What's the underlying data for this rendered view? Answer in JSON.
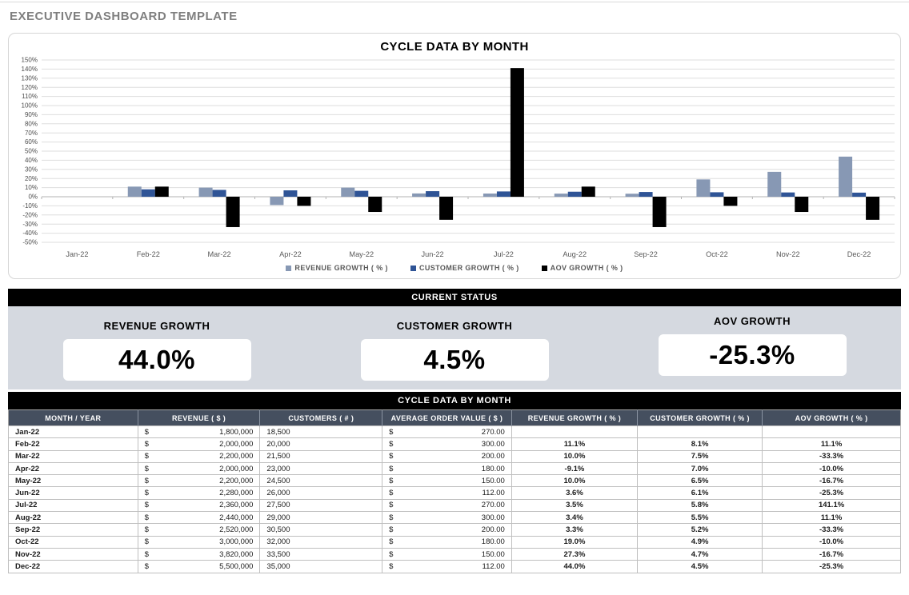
{
  "page": {
    "title": "EXECUTIVE DASHBOARD TEMPLATE"
  },
  "chart": {
    "title": "CYCLE DATA BY MONTH"
  },
  "chart_data": {
    "type": "bar",
    "title": "CYCLE DATA BY MONTH",
    "categories": [
      "Jan-22",
      "Feb-22",
      "Mar-22",
      "Apr-22",
      "May-22",
      "Jun-22",
      "Jul-22",
      "Aug-22",
      "Sep-22",
      "Oct-22",
      "Nov-22",
      "Dec-22"
    ],
    "series": [
      {
        "name": "REVENUE GROWTH ( % )",
        "color": "#8798B4",
        "values": [
          null,
          11.1,
          10.0,
          -9.1,
          10.0,
          3.6,
          3.5,
          3.4,
          3.3,
          19.0,
          27.3,
          44.0
        ]
      },
      {
        "name": "CUSTOMER GROWTH ( % )",
        "color": "#2F5496",
        "values": [
          null,
          8.1,
          7.5,
          7.0,
          6.5,
          6.1,
          5.8,
          5.5,
          5.2,
          4.9,
          4.7,
          4.5
        ]
      },
      {
        "name": "AOV GROWTH ( % )",
        "color": "#000000",
        "values": [
          null,
          11.1,
          -33.3,
          -10.0,
          -16.7,
          -25.3,
          141.1,
          11.1,
          -33.3,
          -10.0,
          -16.7,
          -25.3
        ]
      }
    ],
    "ylim": [
      -50,
      150
    ],
    "ytick_step": 10,
    "ytick_format": "percent",
    "grid": true,
    "legend_position": "bottom"
  },
  "current_status": {
    "title": "CURRENT STATUS",
    "kpis": [
      {
        "label": "REVENUE GROWTH",
        "value": "44.0%"
      },
      {
        "label": "CUSTOMER GROWTH",
        "value": "4.5%"
      },
      {
        "label": "AOV GROWTH",
        "value": "-25.3%"
      }
    ]
  },
  "table": {
    "title": "CYCLE DATA BY MONTH",
    "currency_symbol": "$",
    "columns": [
      "MONTH / YEAR",
      "REVENUE ( $ )",
      "CUSTOMERS ( # )",
      "AVERAGE ORDER VALUE ( $ )",
      "REVENUE GROWTH ( % )",
      "CUSTOMER GROWTH ( % )",
      "AOV GROWTH ( % )"
    ],
    "rows": [
      {
        "month": "Jan-22",
        "revenue": "1,800,000",
        "customers": "18,500",
        "avg_order_value": "270.00",
        "revenue_growth": "",
        "customer_growth": "",
        "aov_growth": ""
      },
      {
        "month": "Feb-22",
        "revenue": "2,000,000",
        "customers": "20,000",
        "avg_order_value": "300.00",
        "revenue_growth": "11.1%",
        "customer_growth": "8.1%",
        "aov_growth": "11.1%"
      },
      {
        "month": "Mar-22",
        "revenue": "2,200,000",
        "customers": "21,500",
        "avg_order_value": "200.00",
        "revenue_growth": "10.0%",
        "customer_growth": "7.5%",
        "aov_growth": "-33.3%"
      },
      {
        "month": "Apr-22",
        "revenue": "2,000,000",
        "customers": "23,000",
        "avg_order_value": "180.00",
        "revenue_growth": "-9.1%",
        "customer_growth": "7.0%",
        "aov_growth": "-10.0%"
      },
      {
        "month": "May-22",
        "revenue": "2,200,000",
        "customers": "24,500",
        "avg_order_value": "150.00",
        "revenue_growth": "10.0%",
        "customer_growth": "6.5%",
        "aov_growth": "-16.7%"
      },
      {
        "month": "Jun-22",
        "revenue": "2,280,000",
        "customers": "26,000",
        "avg_order_value": "112.00",
        "revenue_growth": "3.6%",
        "customer_growth": "6.1%",
        "aov_growth": "-25.3%"
      },
      {
        "month": "Jul-22",
        "revenue": "2,360,000",
        "customers": "27,500",
        "avg_order_value": "270.00",
        "revenue_growth": "3.5%",
        "customer_growth": "5.8%",
        "aov_growth": "141.1%"
      },
      {
        "month": "Aug-22",
        "revenue": "2,440,000",
        "customers": "29,000",
        "avg_order_value": "300.00",
        "revenue_growth": "3.4%",
        "customer_growth": "5.5%",
        "aov_growth": "11.1%"
      },
      {
        "month": "Sep-22",
        "revenue": "2,520,000",
        "customers": "30,500",
        "avg_order_value": "200.00",
        "revenue_growth": "3.3%",
        "customer_growth": "5.2%",
        "aov_growth": "-33.3%"
      },
      {
        "month": "Oct-22",
        "revenue": "3,000,000",
        "customers": "32,000",
        "avg_order_value": "180.00",
        "revenue_growth": "19.0%",
        "customer_growth": "4.9%",
        "aov_growth": "-10.0%"
      },
      {
        "month": "Nov-22",
        "revenue": "3,820,000",
        "customers": "33,500",
        "avg_order_value": "150.00",
        "revenue_growth": "27.3%",
        "customer_growth": "4.7%",
        "aov_growth": "-16.7%"
      },
      {
        "month": "Dec-22",
        "revenue": "5,500,000",
        "customers": "35,000",
        "avg_order_value": "112.00",
        "revenue_growth": "44.0%",
        "customer_growth": "4.5%",
        "aov_growth": "-25.3%"
      }
    ]
  },
  "colors": {
    "revenue_growth_series": "#8798B4",
    "customer_growth_series": "#2F5496",
    "aov_growth_series": "#000000",
    "section_header_bg": "#000000",
    "section_header_text": "#FFFFFF",
    "status_panel_bg": "#D5D9E0",
    "table_header_bg": "#454F5F",
    "grid_line": "#DEDEDE"
  }
}
